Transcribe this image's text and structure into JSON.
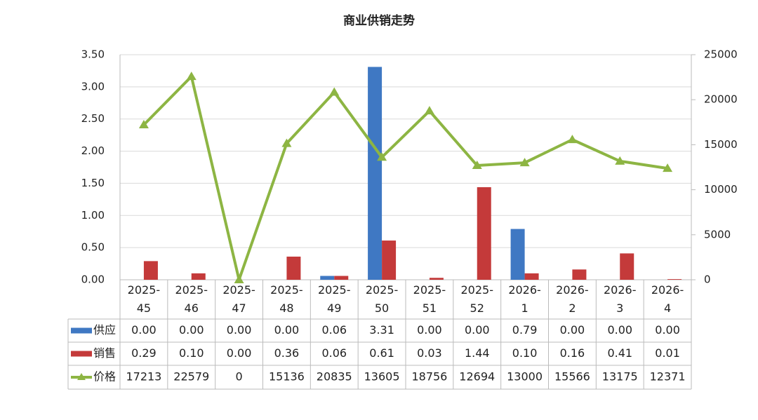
{
  "chart_data": {
    "type": "bar",
    "title": "商业供销走势",
    "categories": [
      "2025-45",
      "2025-46",
      "2025-47",
      "2025-48",
      "2025-49",
      "2025-50",
      "2025-51",
      "2025-52",
      "2026-1",
      "2026-2",
      "2026-3",
      "2026-4"
    ],
    "series": [
      {
        "name": "供应",
        "type": "bar",
        "color": "#3f78c3",
        "values": [
          0,
          0,
          0,
          0,
          0.06,
          3.31,
          0,
          0,
          0.79,
          0,
          0,
          0
        ],
        "value_labels": [
          "0.00",
          "0.00",
          "0.00",
          "0.00",
          "0.06",
          "3.31",
          "0.00",
          "0.00",
          "0.79",
          "0.00",
          "0.00",
          "0.00"
        ]
      },
      {
        "name": "销售",
        "type": "bar",
        "color": "#c43a3a",
        "values": [
          0.29,
          0.1,
          0,
          0.36,
          0.06,
          0.61,
          0.03,
          1.44,
          0.1,
          0.16,
          0.41,
          0.01
        ],
        "value_labels": [
          "0.29",
          "0.10",
          "0.00",
          "0.36",
          "0.06",
          "0.61",
          "0.03",
          "1.44",
          "0.10",
          "0.16",
          "0.41",
          "0.01"
        ]
      },
      {
        "name": "价格",
        "type": "line",
        "axis": "y2",
        "color": "#8db543",
        "values": [
          17213,
          22579,
          0,
          15136,
          20835,
          13605,
          18756,
          12694,
          13000,
          15566,
          13175,
          12371
        ]
      }
    ],
    "ylim": [
      0,
      3.5
    ],
    "yticks": [
      {
        "value": 0,
        "label": "0.00"
      },
      {
        "value": 0.5,
        "label": "0.50"
      },
      {
        "value": 1,
        "label": "1.00"
      },
      {
        "value": 1.5,
        "label": "1.50"
      },
      {
        "value": 2,
        "label": "2.00"
      },
      {
        "value": 2.5,
        "label": "2.50"
      },
      {
        "value": 3,
        "label": "3.00"
      },
      {
        "value": 3.5,
        "label": "3.50"
      }
    ],
    "y2lim": [
      0,
      25000
    ],
    "y2ticks": [
      0,
      5000,
      10000,
      15000,
      20000,
      25000
    ],
    "grid": true
  }
}
